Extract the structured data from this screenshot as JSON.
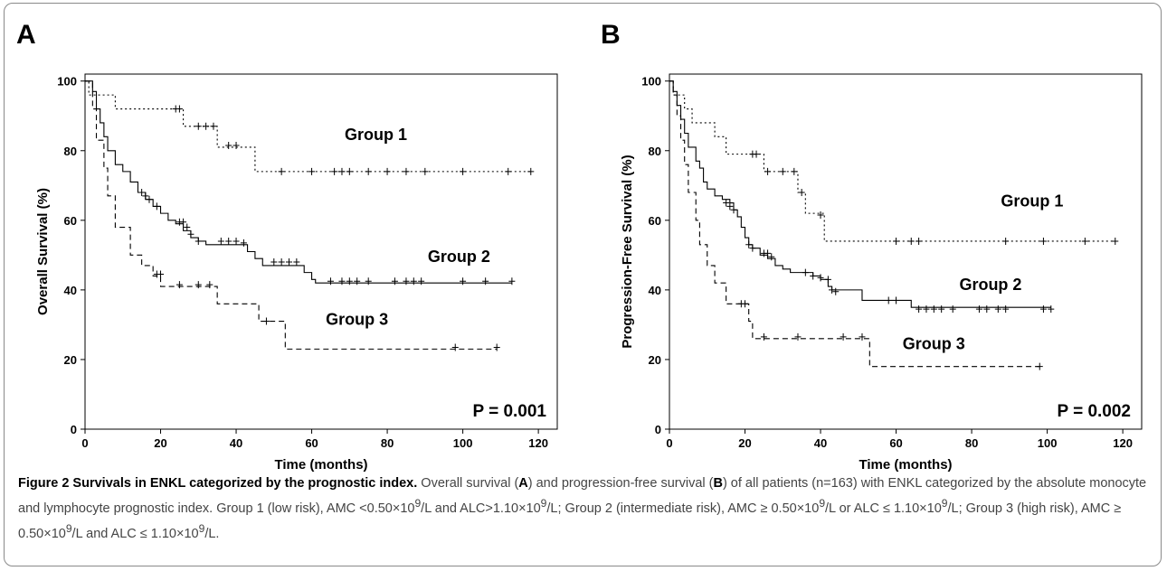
{
  "chart_data": [
    {
      "type": "line",
      "panel": "A",
      "xlabel": "Time (months)",
      "ylabel": "Overall Survival (%)",
      "xlim": [
        0,
        125
      ],
      "ylim": [
        0,
        102
      ],
      "xticks": [
        0,
        20,
        40,
        60,
        80,
        100,
        120
      ],
      "yticks": [
        0,
        20,
        40,
        60,
        80,
        100
      ],
      "grid": false,
      "pvalue": "P = 0.001",
      "series": [
        {
          "name": "Group 1",
          "style": "dotted",
          "steps": [
            [
              0,
              100
            ],
            [
              1,
              96
            ],
            [
              8,
              92
            ],
            [
              26,
              87
            ],
            [
              35,
              81
            ],
            [
              45,
              74
            ],
            [
              118,
              74
            ]
          ],
          "censors": [
            [
              24,
              92
            ],
            [
              25,
              92
            ],
            [
              30,
              87
            ],
            [
              32,
              87
            ],
            [
              34,
              87
            ],
            [
              38,
              81.5
            ],
            [
              40,
              81.5
            ],
            [
              52,
              74
            ],
            [
              60,
              74
            ],
            [
              66,
              74
            ],
            [
              68,
              74
            ],
            [
              70,
              74
            ],
            [
              75,
              74
            ],
            [
              80,
              74
            ],
            [
              85,
              74
            ],
            [
              90,
              74
            ],
            [
              100,
              74
            ],
            [
              112,
              74
            ],
            [
              118,
              74
            ]
          ]
        },
        {
          "name": "Group 2",
          "style": "solid",
          "steps": [
            [
              0,
              100
            ],
            [
              2,
              97
            ],
            [
              3,
              92
            ],
            [
              4,
              88
            ],
            [
              5,
              84
            ],
            [
              6,
              80
            ],
            [
              8,
              76
            ],
            [
              10,
              74
            ],
            [
              12,
              71
            ],
            [
              14,
              68
            ],
            [
              16,
              66
            ],
            [
              18,
              64
            ],
            [
              20,
              62
            ],
            [
              22,
              60
            ],
            [
              24,
              59
            ],
            [
              26,
              57
            ],
            [
              28,
              55
            ],
            [
              30,
              54
            ],
            [
              32,
              53
            ],
            [
              43,
              51
            ],
            [
              45,
              49
            ],
            [
              47,
              47
            ],
            [
              58,
              45
            ],
            [
              60,
              43
            ],
            [
              61,
              42
            ],
            [
              113,
              42
            ]
          ],
          "censors": [
            [
              15,
              68
            ],
            [
              16,
              67
            ],
            [
              17,
              66
            ],
            [
              19,
              64
            ],
            [
              25,
              59.5
            ],
            [
              26,
              59.5
            ],
            [
              27,
              58
            ],
            [
              28,
              56
            ],
            [
              30,
              54
            ],
            [
              36,
              54
            ],
            [
              38,
              54
            ],
            [
              40,
              54
            ],
            [
              42,
              53.5
            ],
            [
              50,
              48
            ],
            [
              52,
              48
            ],
            [
              54,
              48
            ],
            [
              56,
              48
            ],
            [
              65,
              42.5
            ],
            [
              68,
              42.5
            ],
            [
              70,
              42.5
            ],
            [
              72,
              42.5
            ],
            [
              75,
              42.5
            ],
            [
              82,
              42.5
            ],
            [
              85,
              42.5
            ],
            [
              87,
              42.5
            ],
            [
              89,
              42.5
            ],
            [
              100,
              42.5
            ],
            [
              106,
              42.5
            ],
            [
              113,
              42.5
            ]
          ]
        },
        {
          "name": "Group 3",
          "style": "dashed",
          "steps": [
            [
              0,
              100
            ],
            [
              2,
              92
            ],
            [
              3,
              83
            ],
            [
              5,
              75
            ],
            [
              6,
              67
            ],
            [
              8,
              58
            ],
            [
              12,
              50
            ],
            [
              15,
              47
            ],
            [
              18,
              44
            ],
            [
              20,
              41
            ],
            [
              35,
              36
            ],
            [
              46,
              31
            ],
            [
              53,
              23
            ],
            [
              109,
              23
            ]
          ],
          "censors": [
            [
              19,
              44.5
            ],
            [
              20,
              44.5
            ],
            [
              25,
              41.5
            ],
            [
              30,
              41.5
            ],
            [
              33,
              41.5
            ],
            [
              48,
              31
            ],
            [
              98,
              23.5
            ],
            [
              109,
              23.5
            ]
          ]
        }
      ],
      "annotations": [
        {
          "text": "Group 1",
          "x": 77,
          "y": 83
        },
        {
          "text": "Group 2",
          "x": 99,
          "y": 48
        },
        {
          "text": "Group 3",
          "x": 72,
          "y": 30
        }
      ]
    },
    {
      "type": "line",
      "panel": "B",
      "xlabel": "Time (months)",
      "ylabel": "Progression-Free Survival (%)",
      "xlim": [
        0,
        125
      ],
      "ylim": [
        0,
        102
      ],
      "xticks": [
        0,
        20,
        40,
        60,
        80,
        100,
        120
      ],
      "yticks": [
        0,
        20,
        40,
        60,
        80,
        100
      ],
      "grid": false,
      "pvalue": "P = 0.002",
      "series": [
        {
          "name": "Group 1",
          "style": "dotted",
          "steps": [
            [
              0,
              100
            ],
            [
              1,
              96
            ],
            [
              4,
              92
            ],
            [
              6,
              88
            ],
            [
              12,
              84
            ],
            [
              15,
              79
            ],
            [
              25,
              74
            ],
            [
              34,
              68
            ],
            [
              36,
              62
            ],
            [
              41,
              54
            ],
            [
              118,
              54
            ]
          ],
          "censors": [
            [
              22,
              79
            ],
            [
              23,
              79
            ],
            [
              26,
              74
            ],
            [
              30,
              74
            ],
            [
              33,
              74
            ],
            [
              35,
              68
            ],
            [
              40,
              61.5
            ],
            [
              60,
              54
            ],
            [
              64,
              54
            ],
            [
              66,
              54
            ],
            [
              89,
              54
            ],
            [
              99,
              54
            ],
            [
              110,
              54
            ],
            [
              118,
              54
            ]
          ]
        },
        {
          "name": "Group 2",
          "style": "solid",
          "steps": [
            [
              0,
              100
            ],
            [
              1,
              97
            ],
            [
              2,
              93
            ],
            [
              3,
              89
            ],
            [
              4,
              85
            ],
            [
              5,
              81
            ],
            [
              7,
              77
            ],
            [
              8,
              75
            ],
            [
              9,
              71
            ],
            [
              10,
              69
            ],
            [
              12,
              67
            ],
            [
              14,
              66
            ],
            [
              16,
              65
            ],
            [
              17,
              63
            ],
            [
              18,
              61
            ],
            [
              19,
              58
            ],
            [
              20,
              55
            ],
            [
              21,
              53
            ],
            [
              22,
              52
            ],
            [
              24,
              50
            ],
            [
              26,
              49
            ],
            [
              28,
              47
            ],
            [
              30,
              46
            ],
            [
              32,
              45
            ],
            [
              38,
              44
            ],
            [
              40,
              43
            ],
            [
              42,
              41
            ],
            [
              43,
              40
            ],
            [
              51,
              37
            ],
            [
              63,
              37
            ],
            [
              64,
              35
            ],
            [
              101,
              35
            ]
          ],
          "censors": [
            [
              15,
              65
            ],
            [
              16,
              64
            ],
            [
              17,
              63
            ],
            [
              21,
              53
            ],
            [
              22,
              52
            ],
            [
              25,
              50.5
            ],
            [
              26,
              50.5
            ],
            [
              27,
              49.5
            ],
            [
              36,
              45
            ],
            [
              38,
              44
            ],
            [
              40,
              43.5
            ],
            [
              42,
              43
            ],
            [
              43,
              40
            ],
            [
              44,
              39.5
            ],
            [
              58,
              37
            ],
            [
              60,
              37
            ],
            [
              66,
              34.5
            ],
            [
              68,
              34.5
            ],
            [
              70,
              34.5
            ],
            [
              72,
              34.5
            ],
            [
              75,
              34.5
            ],
            [
              82,
              34.5
            ],
            [
              84,
              34.5
            ],
            [
              87,
              34.5
            ],
            [
              89,
              34.5
            ],
            [
              99,
              34.5
            ],
            [
              101,
              34.5
            ]
          ]
        },
        {
          "name": "Group 3",
          "style": "dashed",
          "steps": [
            [
              0,
              100
            ],
            [
              1,
              96
            ],
            [
              2,
              90
            ],
            [
              3,
              83
            ],
            [
              4,
              76
            ],
            [
              5,
              68
            ],
            [
              7,
              60
            ],
            [
              8,
              53
            ],
            [
              10,
              47
            ],
            [
              12,
              42
            ],
            [
              15,
              36
            ],
            [
              20,
              36
            ],
            [
              21,
              31
            ],
            [
              22,
              26
            ],
            [
              52,
              26
            ],
            [
              53,
              18
            ],
            [
              98,
              18
            ]
          ],
          "censors": [
            [
              19,
              36
            ],
            [
              20,
              36
            ],
            [
              25,
              26.5
            ],
            [
              34,
              26.5
            ],
            [
              46,
              26.5
            ],
            [
              51,
              26.5
            ],
            [
              98,
              18
            ]
          ]
        }
      ],
      "annotations": [
        {
          "text": "Group 1",
          "x": 96,
          "y": 64
        },
        {
          "text": "Group 2",
          "x": 85,
          "y": 40
        },
        {
          "text": "Group 3",
          "x": 70,
          "y": 23
        }
      ]
    }
  ],
  "figure": {
    "caption_title": "Figure 2 Survivals in ENKL categorized by the prognostic index.",
    "caption_parts": [
      {
        "text": " Overall survival (",
        "bold": false
      },
      {
        "text": "A",
        "bold": true
      },
      {
        "text": ") and progression-free survival (",
        "bold": false
      },
      {
        "text": "B",
        "bold": true
      },
      {
        "text": ") of all patients (n=163) with ENKL categorized by the absolute monocyte and lymphocyte prognostic index. Group 1 (low risk), AMC <0.50×10",
        "bold": false
      },
      {
        "text": "9",
        "sup": true
      },
      {
        "text": "/L and ALC>1.10×10",
        "bold": false
      },
      {
        "text": "9",
        "sup": true
      },
      {
        "text": "/L; Group 2 (intermediate risk), AMC ≥ 0.50×10",
        "bold": false
      },
      {
        "text": "9",
        "sup": true
      },
      {
        "text": "/L or ALC ≤ 1.10×10",
        "bold": false
      },
      {
        "text": "9",
        "sup": true
      },
      {
        "text": "/L; Group 3 (high risk), AMC ≥ 0.50×10",
        "bold": false
      },
      {
        "text": "9",
        "sup": true
      },
      {
        "text": "/L and ALC ≤ 1.10×10",
        "bold": false
      },
      {
        "text": "9",
        "sup": true
      },
      {
        "text": "/L.",
        "bold": false
      }
    ]
  }
}
